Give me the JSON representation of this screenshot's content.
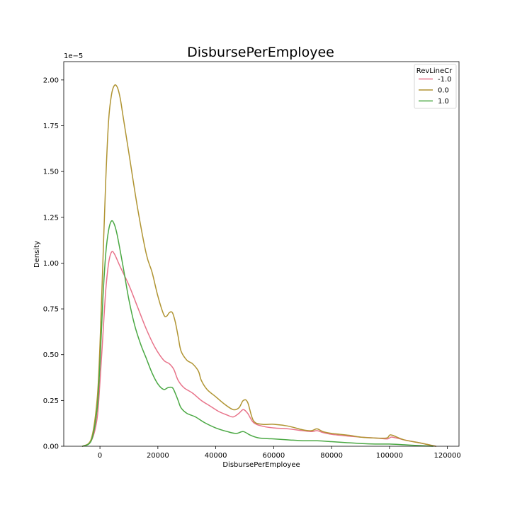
{
  "chart_data": {
    "type": "line",
    "title": "DisbursePerEmployee",
    "xlabel": "DisbursePerEmployee",
    "ylabel": "Density",
    "y_offset_text": "1e−5",
    "xlim": [
      -12500,
      124000
    ],
    "ylim": [
      0,
      2.1
    ],
    "y_scale_label": "values in units of 1e-5",
    "x_ticks": [
      0,
      20000,
      40000,
      60000,
      80000,
      100000,
      120000
    ],
    "x_tick_labels": [
      "0",
      "20000",
      "40000",
      "60000",
      "80000",
      "100000",
      "120000"
    ],
    "y_ticks": [
      0,
      0.25,
      0.5,
      0.75,
      1.0,
      1.25,
      1.5,
      1.75,
      2.0
    ],
    "y_tick_labels": [
      "0.00",
      "0.25",
      "0.50",
      "0.75",
      "1.00",
      "1.25",
      "1.50",
      "1.75",
      "2.00"
    ],
    "grid": false,
    "legend": {
      "title": "RevLineCr",
      "placement": "top-right"
    },
    "series": [
      {
        "name": "-1.0",
        "color": "#e8738a",
        "x": [
          -6000,
          -3000,
          -1000,
          0,
          1000,
          2000,
          3000,
          4000,
          5000,
          7000,
          10000,
          13000,
          16000,
          19000,
          22000,
          24000,
          25500,
          27000,
          29000,
          32000,
          35000,
          38000,
          41000,
          44000,
          46000,
          48000,
          49500,
          51000,
          53000,
          56000,
          60000,
          65000,
          70000,
          73000,
          75000,
          77000,
          80000,
          83000,
          86000,
          90000,
          95000,
          99000,
          100000,
          101000,
          105000,
          110000,
          113000,
          116000
        ],
        "y": [
          0.0,
          0.03,
          0.15,
          0.35,
          0.6,
          0.85,
          1.0,
          1.06,
          1.05,
          0.98,
          0.88,
          0.76,
          0.64,
          0.54,
          0.47,
          0.45,
          0.42,
          0.36,
          0.32,
          0.29,
          0.25,
          0.22,
          0.19,
          0.17,
          0.16,
          0.18,
          0.2,
          0.18,
          0.13,
          0.11,
          0.1,
          0.095,
          0.085,
          0.08,
          0.085,
          0.075,
          0.065,
          0.06,
          0.055,
          0.05,
          0.045,
          0.04,
          0.045,
          0.05,
          0.035,
          0.02,
          0.01,
          0.0
        ]
      },
      {
        "name": "0.0",
        "color": "#b09432",
        "x": [
          -6000,
          -3000,
          -1000,
          0,
          1000,
          2000,
          3000,
          4000,
          5000,
          6000,
          7000,
          8000,
          10000,
          13000,
          16000,
          18000,
          20000,
          22000,
          23000,
          24000,
          25000,
          26000,
          27000,
          28000,
          30000,
          32000,
          34000,
          35000,
          37000,
          40000,
          43000,
          46000,
          48000,
          49500,
          51000,
          53000,
          56000,
          60000,
          65000,
          70000,
          73000,
          75000,
          77000,
          80000,
          83000,
          86000,
          90000,
          95000,
          99000,
          100000,
          101000,
          105000,
          110000,
          113000,
          116000
        ],
        "y": [
          0.0,
          0.04,
          0.25,
          0.55,
          1.0,
          1.45,
          1.78,
          1.92,
          1.97,
          1.96,
          1.9,
          1.8,
          1.6,
          1.3,
          1.05,
          0.95,
          0.82,
          0.72,
          0.71,
          0.73,
          0.73,
          0.68,
          0.6,
          0.52,
          0.47,
          0.45,
          0.41,
          0.36,
          0.31,
          0.27,
          0.23,
          0.2,
          0.21,
          0.25,
          0.24,
          0.14,
          0.12,
          0.12,
          0.11,
          0.09,
          0.085,
          0.095,
          0.08,
          0.07,
          0.065,
          0.06,
          0.05,
          0.045,
          0.045,
          0.06,
          0.06,
          0.035,
          0.02,
          0.01,
          0.0
        ]
      },
      {
        "name": "1.0",
        "color": "#4aa843",
        "x": [
          -6000,
          -3000,
          -1000,
          0,
          1000,
          2000,
          3000,
          4000,
          5000,
          6000,
          8000,
          10000,
          12000,
          14000,
          16000,
          18000,
          20000,
          22000,
          23500,
          25000,
          26000,
          27000,
          28000,
          30000,
          33000,
          36000,
          40000,
          44000,
          47000,
          49500,
          52000,
          55000,
          60000,
          65000,
          70000,
          75000,
          80000,
          85000,
          90000,
          95000,
          100000,
          105000,
          110000,
          115000
        ],
        "y": [
          0.0,
          0.03,
          0.2,
          0.45,
          0.8,
          1.05,
          1.18,
          1.23,
          1.21,
          1.15,
          0.98,
          0.8,
          0.66,
          0.56,
          0.48,
          0.4,
          0.34,
          0.31,
          0.32,
          0.32,
          0.29,
          0.25,
          0.21,
          0.18,
          0.16,
          0.13,
          0.1,
          0.08,
          0.07,
          0.08,
          0.06,
          0.045,
          0.04,
          0.035,
          0.03,
          0.03,
          0.025,
          0.02,
          0.015,
          0.012,
          0.012,
          0.008,
          0.004,
          0.0
        ]
      }
    ]
  }
}
